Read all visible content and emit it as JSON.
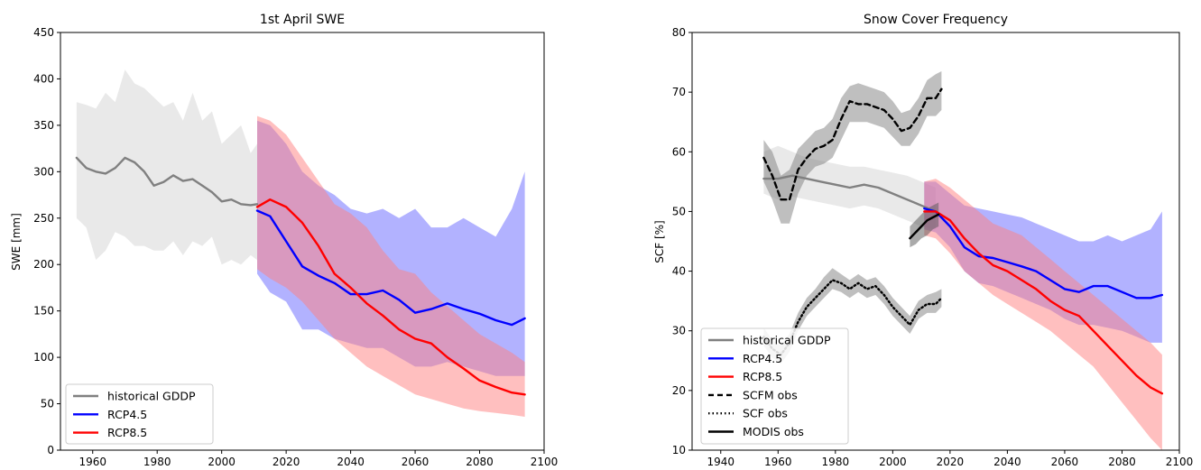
{
  "chart_data": [
    {
      "type": "line",
      "title": "1st April SWE",
      "xlabel": "",
      "ylabel": "SWE [mm]",
      "xlim": [
        1950,
        2100
      ],
      "ylim": [
        0,
        450
      ],
      "xticks": [
        1960,
        1980,
        2000,
        2020,
        2040,
        2060,
        2080,
        2100
      ],
      "yticks": [
        0,
        50,
        100,
        150,
        200,
        250,
        300,
        350,
        400,
        450
      ],
      "grid": false,
      "legend_position": "lower-left",
      "series": [
        {
          "name": "historical GDDP",
          "color": "#808080",
          "band_color": "#d3d3d3",
          "x": [
            1955,
            1958,
            1961,
            1964,
            1967,
            1970,
            1973,
            1976,
            1979,
            1982,
            1985,
            1988,
            1991,
            1994,
            1997,
            2000,
            2003,
            2006,
            2009,
            2011
          ],
          "y": [
            315,
            304,
            300,
            298,
            304,
            315,
            310,
            300,
            285,
            289,
            296,
            290,
            292,
            285,
            278,
            268,
            270,
            265,
            264,
            265
          ],
          "upper": [
            375,
            372,
            368,
            385,
            375,
            410,
            395,
            390,
            380,
            370,
            375,
            355,
            385,
            355,
            365,
            330,
            340,
            350,
            320,
            330
          ],
          "lower": [
            250,
            240,
            205,
            215,
            235,
            230,
            220,
            220,
            215,
            215,
            225,
            210,
            225,
            220,
            230,
            200,
            205,
            200,
            210,
            205
          ]
        },
        {
          "name": "RCP4.5",
          "color": "#0000ff",
          "band_color": "#6666ff",
          "x": [
            2011,
            2015,
            2020,
            2025,
            2030,
            2035,
            2040,
            2045,
            2050,
            2055,
            2060,
            2065,
            2070,
            2075,
            2080,
            2085,
            2090,
            2094
          ],
          "y": [
            258,
            252,
            225,
            198,
            188,
            180,
            168,
            168,
            172,
            162,
            148,
            152,
            158,
            152,
            147,
            140,
            135,
            142
          ],
          "upper": [
            355,
            350,
            330,
            300,
            285,
            275,
            260,
            255,
            260,
            250,
            260,
            240,
            240,
            250,
            240,
            230,
            260,
            300
          ],
          "lower": [
            190,
            170,
            160,
            130,
            130,
            120,
            115,
            110,
            110,
            100,
            90,
            90,
            95,
            90,
            85,
            80,
            80,
            80
          ]
        },
        {
          "name": "RCP8.5",
          "color": "#ff0000",
          "band_color": "#ff8080",
          "x": [
            2011,
            2015,
            2020,
            2025,
            2030,
            2035,
            2040,
            2045,
            2050,
            2055,
            2060,
            2065,
            2070,
            2075,
            2080,
            2085,
            2090,
            2094
          ],
          "y": [
            262,
            270,
            262,
            245,
            220,
            190,
            175,
            158,
            145,
            130,
            120,
            115,
            100,
            88,
            75,
            68,
            62,
            60
          ],
          "upper": [
            360,
            355,
            340,
            315,
            290,
            265,
            255,
            240,
            215,
            195,
            190,
            170,
            155,
            140,
            125,
            115,
            105,
            95
          ],
          "lower": [
            195,
            185,
            175,
            160,
            140,
            120,
            105,
            90,
            80,
            70,
            60,
            55,
            50,
            45,
            42,
            40,
            38,
            36
          ]
        }
      ]
    },
    {
      "type": "line",
      "title": "Snow Cover Frequency",
      "xlabel": "",
      "ylabel": "SCF [%]",
      "xlim": [
        1930,
        2100
      ],
      "ylim": [
        10,
        80
      ],
      "xticks": [
        1940,
        1960,
        1980,
        2000,
        2020,
        2040,
        2060,
        2080,
        2100
      ],
      "yticks": [
        10,
        20,
        30,
        40,
        50,
        60,
        70,
        80
      ],
      "grid": false,
      "legend_position": "lower-left",
      "series": [
        {
          "name": "historical GDDP",
          "color": "#808080",
          "band_color": "#d3d3d3",
          "x": [
            1955,
            1960,
            1965,
            1970,
            1975,
            1980,
            1985,
            1990,
            1995,
            2000,
            2005,
            2010,
            2015
          ],
          "y": [
            55.5,
            55.5,
            56,
            55.5,
            55,
            54.5,
            54,
            54.5,
            54,
            53,
            52,
            51,
            50
          ],
          "upper": [
            60,
            61,
            60,
            59,
            58.5,
            58,
            57.5,
            57.5,
            57,
            56.5,
            56,
            55,
            54
          ],
          "lower": [
            53,
            52,
            52.5,
            52,
            51.5,
            51,
            50.5,
            51,
            50.5,
            49.5,
            48.5,
            47.5,
            47
          ]
        },
        {
          "name": "RCP4.5",
          "color": "#0000ff",
          "band_color": "#6666ff",
          "x": [
            2011,
            2015,
            2020,
            2025,
            2030,
            2035,
            2040,
            2045,
            2050,
            2055,
            2060,
            2065,
            2070,
            2075,
            2080,
            2085,
            2090,
            2094
          ],
          "y": [
            50.5,
            50,
            47.5,
            44,
            42.5,
            42.2,
            41.5,
            40.8,
            40,
            38.5,
            37,
            36.5,
            37.5,
            37.5,
            36.5,
            35.5,
            35.5,
            36
          ],
          "upper": [
            55,
            55,
            53,
            51,
            50.5,
            50,
            49.5,
            49,
            48,
            47,
            46,
            45,
            45,
            46,
            45,
            46,
            47,
            50
          ],
          "lower": [
            47,
            46.5,
            44,
            40,
            38,
            37.5,
            36.5,
            35.5,
            34.5,
            33.5,
            32,
            31,
            31,
            30.5,
            30,
            29,
            28,
            28
          ]
        },
        {
          "name": "RCP8.5",
          "color": "#ff0000",
          "band_color": "#ff8080",
          "x": [
            2011,
            2015,
            2020,
            2025,
            2030,
            2035,
            2040,
            2045,
            2050,
            2055,
            2060,
            2065,
            2070,
            2075,
            2080,
            2085,
            2090,
            2094
          ],
          "y": [
            50,
            50,
            48.5,
            45.5,
            43,
            41,
            40,
            38.5,
            37,
            35,
            33.5,
            32.5,
            30,
            27.5,
            25,
            22.5,
            20.5,
            19.5
          ],
          "upper": [
            55,
            55.5,
            54,
            52,
            50,
            48,
            47,
            46,
            44,
            42,
            40,
            38,
            36,
            34,
            32,
            30,
            28,
            26
          ],
          "lower": [
            46,
            45.5,
            43,
            40,
            38,
            36,
            34.5,
            33,
            31.5,
            30,
            28,
            26,
            24,
            21,
            18,
            15,
            12,
            10
          ]
        },
        {
          "name": "SCFM obs",
          "color": "#000000",
          "band_color": "#808080",
          "dash": "6,4",
          "x": [
            1955,
            1958,
            1961,
            1964,
            1967,
            1970,
            1973,
            1976,
            1979,
            1982,
            1985,
            1988,
            1991,
            1994,
            1997,
            2000,
            2003,
            2006,
            2009,
            2012,
            2015,
            2017
          ],
          "y": [
            59,
            56,
            52,
            52,
            57,
            59,
            60.5,
            61,
            62,
            65.5,
            68.5,
            68,
            68,
            67.5,
            67,
            65.5,
            63.5,
            64,
            66,
            69,
            69,
            70.5
          ],
          "upper": [
            62,
            60,
            56,
            57,
            60.5,
            62,
            63.5,
            64,
            65.5,
            69,
            71,
            71.5,
            71,
            70.5,
            70,
            68.5,
            66.5,
            67,
            69,
            72,
            73,
            73.5
          ],
          "lower": [
            55,
            52,
            48,
            48,
            53,
            56,
            57.5,
            58,
            59,
            62,
            65,
            65,
            65,
            64.5,
            64,
            62.5,
            61,
            61,
            63,
            66,
            66,
            67
          ]
        },
        {
          "name": "SCF obs",
          "color": "#000000",
          "band_color": "#808080",
          "dash": "1.5,3",
          "x": [
            1955,
            1958,
            1961,
            1964,
            1967,
            1970,
            1973,
            1976,
            1979,
            1982,
            1985,
            1988,
            1991,
            1994,
            1997,
            2000,
            2003,
            2006,
            2009,
            2012,
            2015,
            2017
          ],
          "y": [
            29,
            27,
            26,
            28,
            31.5,
            34,
            35.5,
            37,
            38.5,
            38,
            37,
            38,
            37,
            37.5,
            36,
            34,
            32.5,
            31,
            33.5,
            34.5,
            34.5,
            35.5
          ],
          "upper": [
            30.5,
            28.5,
            27.5,
            29.5,
            33,
            35.5,
            37,
            39,
            40.5,
            39.5,
            38.5,
            39.5,
            38.5,
            39,
            37.5,
            35.5,
            34,
            32.5,
            35,
            36,
            36.5,
            37
          ],
          "lower": [
            27.5,
            25.5,
            24.5,
            26.5,
            30,
            32.5,
            34,
            35.5,
            37,
            36.5,
            35.5,
            36.5,
            35.5,
            36,
            34.5,
            32.5,
            31,
            29.5,
            32,
            33,
            33,
            34
          ]
        },
        {
          "name": "MODIS obs",
          "color": "#000000",
          "band_color": "#555555",
          "x": [
            2006,
            2008,
            2010,
            2012,
            2014,
            2016
          ],
          "y": [
            45.5,
            46.5,
            47.5,
            48.5,
            49,
            49.5
          ],
          "upper": [
            47.5,
            48.5,
            49.5,
            50.5,
            51,
            51.5
          ],
          "lower": [
            44,
            44.5,
            45.5,
            46,
            47,
            47.5
          ]
        }
      ]
    }
  ]
}
